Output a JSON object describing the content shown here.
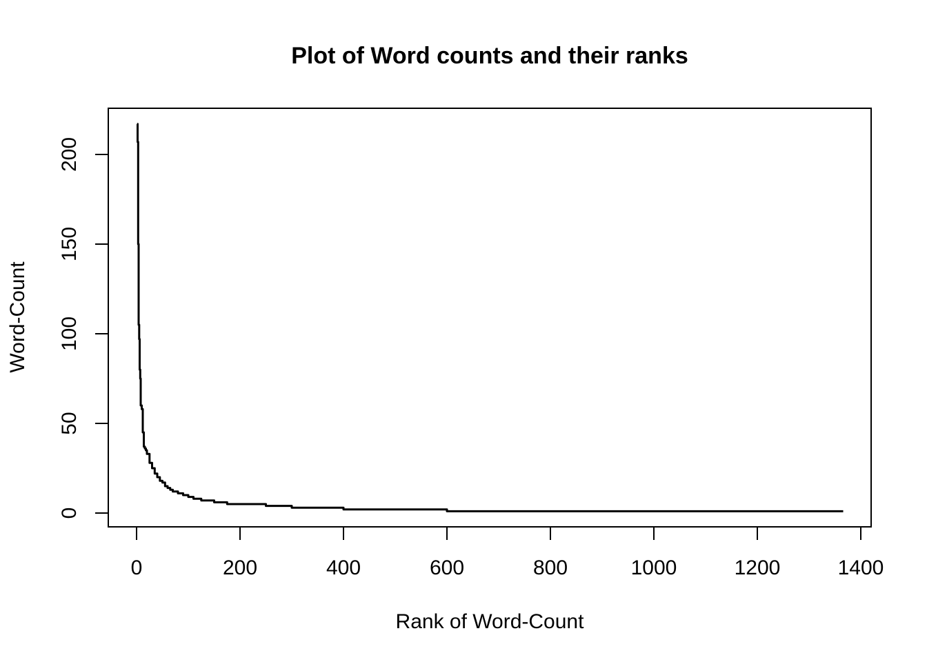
{
  "chart_data": {
    "type": "line",
    "title": "Plot of Word counts and their ranks",
    "xlabel": "Rank of Word-Count",
    "ylabel": "Word-Count",
    "xlim": [
      0,
      1400
    ],
    "ylim": [
      0,
      220
    ],
    "x_ticks": [
      "0",
      "200",
      "400",
      "600",
      "800",
      "1000",
      "1200",
      "1400"
    ],
    "y_ticks": [
      "0",
      "50",
      "100",
      "150",
      "200"
    ],
    "grid": false,
    "legend": "none",
    "line_color": "#000000",
    "series": [
      {
        "x": [
          1,
          2,
          3,
          4,
          5,
          6,
          7,
          8,
          10,
          12,
          14,
          16,
          18,
          20,
          25,
          30,
          35,
          40,
          45,
          50,
          55,
          60,
          65,
          70,
          80,
          90,
          100,
          110,
          125,
          150,
          175,
          200,
          250,
          300,
          350,
          400,
          450,
          500,
          550,
          600,
          700,
          800,
          900,
          1000,
          1100,
          1200,
          1300,
          1366
        ],
        "y": [
          217,
          207,
          150,
          105,
          97,
          80,
          75,
          60,
          58,
          45,
          37,
          36,
          35,
          33,
          28,
          25,
          22,
          20,
          18,
          17,
          15,
          14,
          13,
          12,
          11,
          10,
          9,
          8,
          7,
          6,
          5,
          5,
          4,
          3,
          3,
          2,
          2,
          2,
          2,
          1,
          1,
          1,
          1,
          1,
          1,
          1,
          1,
          1
        ]
      }
    ]
  }
}
